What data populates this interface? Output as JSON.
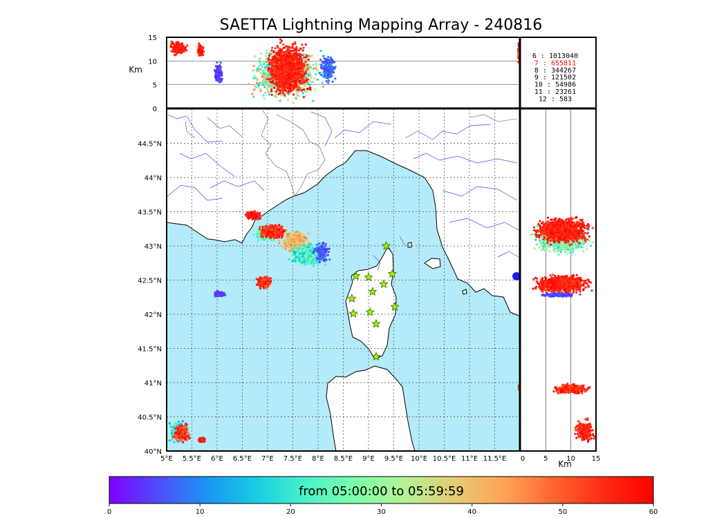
{
  "title": "SAETTA Lightning Mapping Array - 240816",
  "colors": {
    "sea": "#b4ebfb",
    "land": "#ffffff",
    "coast": "#000000",
    "rivers": "#4a4aef",
    "borders": "#555555",
    "frame": "#000000",
    "grid": "#444444",
    "station_fill": "#a8f000",
    "station_edge": "#2c6b00",
    "highlight": "#ff0000"
  },
  "colorbar": {
    "label": "from 05:00:00 to 05:59:59",
    "ticks": [
      "0",
      "10",
      "20",
      "30",
      "40",
      "50",
      "60"
    ],
    "colormap": "rainbow",
    "range": [
      0,
      60
    ],
    "stops": [
      "#7f00ff",
      "#4d4dfc",
      "#1a96f3",
      "#19cee3",
      "#4bf3c9",
      "#7ffea8",
      "#b3f295",
      "#e6cb73",
      "#ffa256",
      "#ff6430",
      "#ff2a14",
      "#ff0000"
    ]
  },
  "count_table": [
    {
      "label": "6  :  1013040",
      "highlight": false
    },
    {
      "label": "7  :   655811",
      "highlight": true
    },
    {
      "label": "8  :   344267",
      "highlight": false
    },
    {
      "label": "9  :   121502",
      "highlight": false
    },
    {
      "label": "10 :    54986",
      "highlight": false
    },
    {
      "label": "11 :    23261",
      "highlight": false
    },
    {
      "label": "12 :      583",
      "highlight": false
    }
  ],
  "chart_data": [
    {
      "type": "scatter",
      "panel": "plan view map",
      "title": "SAETTA Lightning Mapping Array - 240816",
      "xlabel": "",
      "ylabel": "",
      "xlim": [
        5.0,
        12.0
      ],
      "ylim": [
        40.0,
        45.0
      ],
      "x_ticks": [
        "5°E",
        "5.5°E",
        "6°E",
        "6.5°E",
        "7°E",
        "7.5°E",
        "8°E",
        "8.5°E",
        "9°E",
        "9.5°E",
        "10°E",
        "10.5°E",
        "11°E",
        "11.5°E"
      ],
      "x_tick_values": [
        5.0,
        5.5,
        6.0,
        6.5,
        7.0,
        7.5,
        8.0,
        8.5,
        9.0,
        9.5,
        10.0,
        10.5,
        11.0,
        11.5
      ],
      "y_ticks": [
        "40°N",
        "40.5°N",
        "41°N",
        "41.5°N",
        "42°N",
        "42.5°N",
        "43°N",
        "43.5°N",
        "44°N",
        "44.5°N"
      ],
      "y_tick_values": [
        40.0,
        40.5,
        41.0,
        41.5,
        42.0,
        42.5,
        43.0,
        43.5,
        44.0,
        44.5
      ],
      "grid": true,
      "stations": [
        {
          "lon": 9.35,
          "lat": 43.0
        },
        {
          "lon": 8.75,
          "lat": 42.56
        },
        {
          "lon": 9.0,
          "lat": 42.54
        },
        {
          "lon": 9.47,
          "lat": 42.59
        },
        {
          "lon": 9.3,
          "lat": 42.44
        },
        {
          "lon": 9.08,
          "lat": 42.33
        },
        {
          "lon": 8.67,
          "lat": 42.23
        },
        {
          "lon": 9.52,
          "lat": 42.11
        },
        {
          "lon": 8.7,
          "lat": 42.01
        },
        {
          "lon": 9.03,
          "lat": 42.03
        },
        {
          "lon": 9.15,
          "lat": 41.86
        },
        {
          "lon": 9.15,
          "lat": 41.38
        }
      ],
      "clusters": [
        {
          "lon": [
            6.55,
            6.9
          ],
          "lat": [
            43.37,
            43.52
          ],
          "t": [
            52,
            60
          ],
          "n": 160
        },
        {
          "lon": [
            6.7,
            7.2
          ],
          "lat": [
            43.05,
            43.32
          ],
          "t": [
            18,
            32
          ],
          "n": 320
        },
        {
          "lon": [
            6.8,
            7.4
          ],
          "lat": [
            43.1,
            43.32
          ],
          "t": [
            50,
            60
          ],
          "n": 420
        },
        {
          "lon": [
            7.2,
            7.9
          ],
          "lat": [
            42.88,
            43.25
          ],
          "t": [
            35,
            48
          ],
          "n": 380
        },
        {
          "lon": [
            7.4,
            8.2
          ],
          "lat": [
            42.68,
            43.05
          ],
          "t": [
            14,
            28
          ],
          "n": 520
        },
        {
          "lon": [
            7.9,
            8.25
          ],
          "lat": [
            42.72,
            43.1
          ],
          "t": [
            2,
            10
          ],
          "n": 120
        },
        {
          "lon": [
            6.75,
            7.1
          ],
          "lat": [
            42.36,
            42.58
          ],
          "t": [
            48,
            60
          ],
          "n": 220
        },
        {
          "lon": [
            5.9,
            6.2
          ],
          "lat": [
            42.25,
            42.34
          ],
          "t": [
            2,
            8
          ],
          "n": 120
        },
        {
          "lon": [
            5.0,
            5.5
          ],
          "lat": [
            40.1,
            40.48
          ],
          "t": [
            10,
            28
          ],
          "n": 220
        },
        {
          "lon": [
            5.1,
            5.5
          ],
          "lat": [
            40.1,
            40.4
          ],
          "t": [
            48,
            60
          ],
          "n": 200
        },
        {
          "lon": [
            5.62,
            5.78
          ],
          "lat": [
            40.12,
            40.2
          ],
          "t": [
            55,
            60
          ],
          "n": 50
        },
        {
          "lon": [
            11.97,
            12.0
          ],
          "lat": [
            40.88,
            41.0
          ],
          "t": [
            50,
            60
          ],
          "n": 30
        }
      ]
    },
    {
      "type": "scatter",
      "panel": "longitude-altitude",
      "ylabel": "Km",
      "xlim": [
        5.0,
        12.0
      ],
      "ylim": [
        0,
        15
      ],
      "y_ticks": [
        "0",
        "5",
        "10",
        "15"
      ],
      "y_tick_values": [
        0,
        5,
        10,
        15
      ],
      "clusters": [
        {
          "lon": [
            5.0,
            5.45
          ],
          "lat": [
            11.0,
            14.5
          ],
          "t": [
            52,
            60
          ],
          "n": 160
        },
        {
          "lon": [
            5.6,
            5.75
          ],
          "lat": [
            10.5,
            14.0
          ],
          "t": [
            52,
            60
          ],
          "n": 80
        },
        {
          "lon": [
            5.93,
            6.13
          ],
          "lat": [
            4.8,
            10.0
          ],
          "t": [
            2,
            8
          ],
          "n": 160
        },
        {
          "lon": [
            6.5,
            8.2
          ],
          "lat": [
            0.8,
            13.5
          ],
          "t": [
            15,
            48
          ],
          "n": 900
        },
        {
          "lon": [
            6.9,
            7.9
          ],
          "lat": [
            1.5,
            14.8
          ],
          "t": [
            52,
            60
          ],
          "n": 1100
        },
        {
          "lon": [
            8.0,
            8.4
          ],
          "lat": [
            5.0,
            12.0
          ],
          "t": [
            3,
            12
          ],
          "n": 150
        },
        {
          "lon": [
            11.96,
            12.0
          ],
          "lat": [
            9.0,
            14.5
          ],
          "t": [
            50,
            60
          ],
          "n": 60
        }
      ]
    },
    {
      "type": "scatter",
      "panel": "altitude-latitude",
      "xlabel": "Km",
      "xlim": [
        0,
        15
      ],
      "ylim": [
        40.0,
        45.0
      ],
      "x_ticks": [
        "0",
        "5",
        "10",
        "15"
      ],
      "x_tick_values": [
        0,
        5,
        10,
        15
      ],
      "clusters": [
        {
          "lon": [
            1.5,
            15.0
          ],
          "lat": [
            42.85,
            43.35
          ],
          "t": [
            18,
            35
          ],
          "n": 900
        },
        {
          "lon": [
            2.0,
            15.0
          ],
          "lat": [
            43.0,
            43.45
          ],
          "t": [
            52,
            60
          ],
          "n": 1100
        },
        {
          "lon": [
            1.5,
            15.0
          ],
          "lat": [
            42.28,
            42.6
          ],
          "t": [
            52,
            60
          ],
          "n": 700
        },
        {
          "lon": [
            3.0,
            12.0
          ],
          "lat": [
            42.25,
            42.32
          ],
          "t": [
            2,
            8
          ],
          "n": 160
        },
        {
          "lon": [
            6.0,
            14.0
          ],
          "lat": [
            40.82,
            41.0
          ],
          "t": [
            50,
            60
          ],
          "n": 350
        },
        {
          "lon": [
            10.5,
            15.0
          ],
          "lat": [
            40.1,
            40.5
          ],
          "t": [
            50,
            60
          ],
          "n": 220
        }
      ]
    }
  ]
}
